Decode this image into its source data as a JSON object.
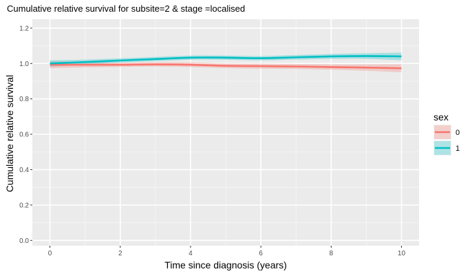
{
  "chart_data": {
    "type": "line",
    "title": "Cumulative relative survival for subsite=2 & stage =localised",
    "xlabel": "Time since diagnosis (years)",
    "ylabel": "Cumulative relative survival",
    "xlim": [
      -0.5,
      10.5
    ],
    "ylim": [
      -0.03,
      1.25
    ],
    "x_ticks": [
      0,
      2,
      4,
      6,
      8,
      10
    ],
    "x_tick_labels": [
      "0",
      "2",
      "4",
      "6",
      "8",
      "10"
    ],
    "y_ticks": [
      0.0,
      0.2,
      0.4,
      0.6,
      0.8,
      1.0,
      1.2
    ],
    "y_tick_labels": [
      "0.0",
      "0.2",
      "0.4",
      "0.6",
      "0.8",
      "1.0",
      "1.2"
    ],
    "grid": true,
    "legend": {
      "title": "sex",
      "position": "right"
    },
    "x": [
      0,
      1,
      2,
      3,
      4,
      5,
      6,
      7,
      8,
      9,
      10
    ],
    "series": [
      {
        "name": "0",
        "color": "#F8766D",
        "values": [
          0.993,
          0.993,
          0.993,
          0.995,
          0.993,
          0.987,
          0.985,
          0.983,
          0.98,
          0.977,
          0.973
        ],
        "lower": [
          0.973,
          0.978,
          0.981,
          0.983,
          0.98,
          0.974,
          0.971,
          0.969,
          0.965,
          0.959,
          0.95
        ],
        "upper": [
          1.013,
          1.008,
          1.005,
          1.007,
          1.006,
          1.0,
          0.999,
          0.997,
          0.995,
          0.995,
          0.996
        ]
      },
      {
        "name": "1",
        "color": "#00BFC4",
        "values": [
          1.0,
          1.008,
          1.017,
          1.025,
          1.033,
          1.033,
          1.03,
          1.035,
          1.04,
          1.042,
          1.04
        ],
        "lower": [
          0.982,
          0.994,
          1.005,
          1.013,
          1.021,
          1.021,
          1.018,
          1.022,
          1.026,
          1.026,
          1.018
        ],
        "upper": [
          1.018,
          1.022,
          1.029,
          1.037,
          1.045,
          1.045,
          1.042,
          1.048,
          1.054,
          1.058,
          1.062
        ]
      }
    ]
  }
}
